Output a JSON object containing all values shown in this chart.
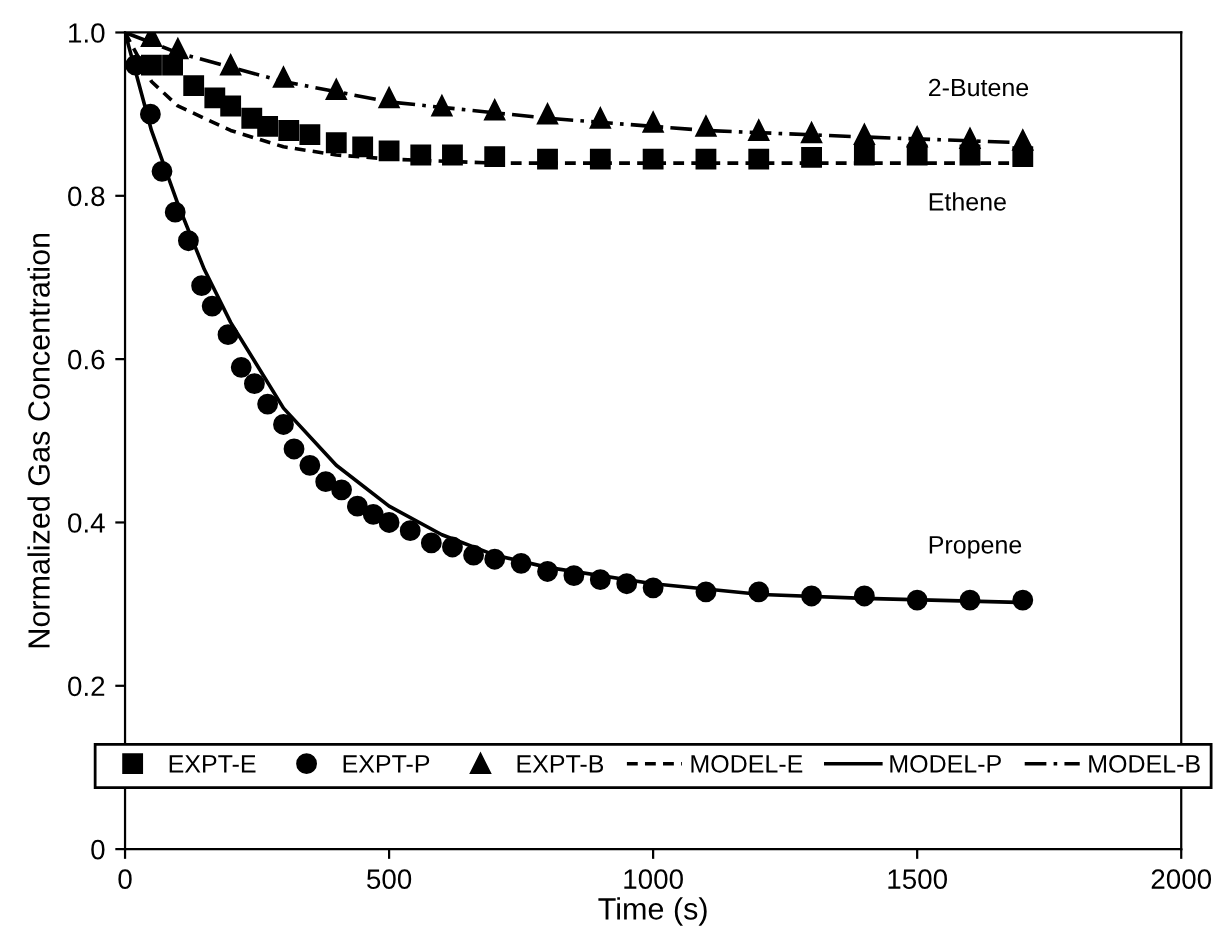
{
  "chart_data": {
    "type": "line",
    "xlabel": "Time (s)",
    "ylabel": "Normalized Gas Concentration",
    "xlim": [
      0,
      2000
    ],
    "xticks": [
      0,
      500,
      1000,
      1500,
      2000
    ],
    "ylim": [
      0,
      1.0
    ],
    "yticks": [
      0,
      0.2,
      0.4,
      0.6,
      0.8,
      {
        "value": 1.0,
        "label": "1.0"
      }
    ],
    "legend": "bottom",
    "grid": false,
    "annotations": [
      "2-Butene",
      "Ethene",
      "Propene"
    ],
    "series": [
      {
        "name": "EXPT-E",
        "type": "scatter",
        "marker": "square",
        "color": "#000000",
        "x": [
          50,
          90,
          130,
          170,
          200,
          240,
          270,
          310,
          350,
          400,
          450,
          500,
          560,
          620,
          700,
          800,
          900,
          1000,
          1100,
          1200,
          1300,
          1400,
          1500,
          1600,
          1700
        ],
        "values": [
          0.96,
          0.96,
          0.935,
          0.92,
          0.91,
          0.895,
          0.885,
          0.88,
          0.875,
          0.865,
          0.86,
          0.855,
          0.85,
          0.85,
          0.848,
          0.845,
          0.845,
          0.845,
          0.845,
          0.845,
          0.847,
          0.85,
          0.85,
          0.85,
          0.848
        ]
      },
      {
        "name": "EXPT-P",
        "type": "scatter",
        "marker": "circle",
        "color": "#000000",
        "x": [
          20,
          48,
          70,
          95,
          120,
          145,
          165,
          195,
          220,
          245,
          270,
          300,
          320,
          350,
          380,
          410,
          440,
          470,
          500,
          540,
          580,
          620,
          660,
          700,
          750,
          800,
          850,
          900,
          950,
          1000,
          1100,
          1200,
          1300,
          1400,
          1500,
          1600,
          1700
        ],
        "values": [
          0.96,
          0.9,
          0.83,
          0.78,
          0.745,
          0.69,
          0.665,
          0.63,
          0.59,
          0.57,
          0.545,
          0.52,
          0.49,
          0.47,
          0.45,
          0.44,
          0.42,
          0.41,
          0.4,
          0.39,
          0.375,
          0.37,
          0.36,
          0.355,
          0.35,
          0.34,
          0.335,
          0.33,
          0.325,
          0.32,
          0.315,
          0.315,
          0.31,
          0.31,
          0.305,
          0.305,
          0.305
        ]
      },
      {
        "name": "EXPT-B",
        "type": "scatter",
        "marker": "triangle",
        "color": "#000000",
        "x": [
          50,
          100,
          200,
          300,
          400,
          500,
          600,
          700,
          800,
          900,
          1000,
          1100,
          1200,
          1300,
          1400,
          1500,
          1600,
          1700
        ],
        "values": [
          0.995,
          0.98,
          0.96,
          0.945,
          0.93,
          0.92,
          0.91,
          0.905,
          0.9,
          0.895,
          0.89,
          0.885,
          0.88,
          0.877,
          0.875,
          0.872,
          0.87,
          0.868
        ]
      },
      {
        "name": "MODEL-E",
        "line_style": "dashed",
        "color": "#000000",
        "x": [
          0,
          50,
          100,
          200,
          300,
          400,
          500,
          700,
          1000,
          1700
        ],
        "values": [
          1.0,
          0.94,
          0.91,
          0.88,
          0.86,
          0.85,
          0.845,
          0.84,
          0.84,
          0.84
        ]
      },
      {
        "name": "MODEL-P",
        "line_style": "solid",
        "color": "#000000",
        "x": [
          0,
          50,
          100,
          150,
          200,
          300,
          400,
          500,
          600,
          700,
          800,
          1000,
          1200,
          1400,
          1700
        ],
        "values": [
          1.0,
          0.88,
          0.79,
          0.71,
          0.645,
          0.54,
          0.47,
          0.42,
          0.385,
          0.36,
          0.345,
          0.325,
          0.312,
          0.307,
          0.302
        ]
      },
      {
        "name": "MODEL-B",
        "line_style": "dashdot",
        "color": "#000000",
        "x": [
          0,
          100,
          300,
          500,
          800,
          1100,
          1400,
          1700
        ],
        "values": [
          1.0,
          0.975,
          0.94,
          0.915,
          0.895,
          0.88,
          0.872,
          0.865
        ]
      }
    ]
  }
}
